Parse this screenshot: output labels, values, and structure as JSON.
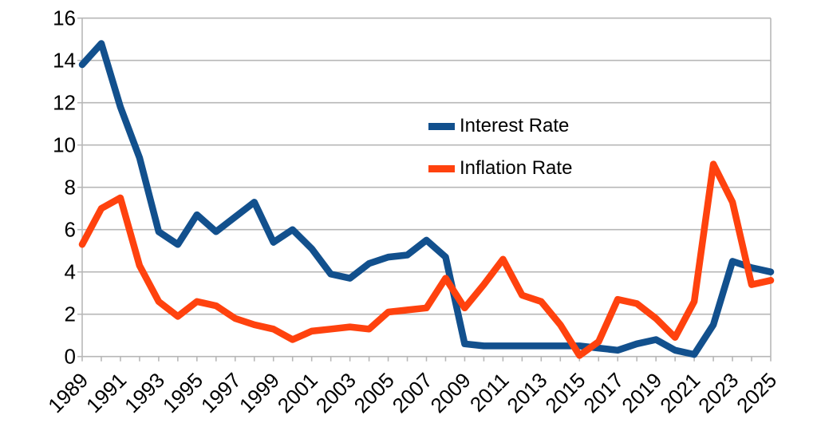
{
  "chart_data": {
    "type": "line",
    "title": "",
    "xlabel": "",
    "ylabel": "",
    "x_range": [
      1989,
      2025
    ],
    "y_range": [
      0,
      16
    ],
    "grid": "horizontal",
    "legend_position": "inside-upper-middle",
    "y_ticks": [
      0,
      2,
      4,
      6,
      8,
      10,
      12,
      14,
      16
    ],
    "x_tick_label_years": [
      1989,
      1991,
      1993,
      1995,
      1997,
      1999,
      2001,
      2003,
      2005,
      2007,
      2009,
      2011,
      2013,
      2015,
      2017,
      2019,
      2021,
      2023,
      2025
    ],
    "x": [
      1989,
      1990,
      1991,
      1992,
      1993,
      1994,
      1995,
      1996,
      1997,
      1998,
      1999,
      2000,
      2001,
      2002,
      2003,
      2004,
      2005,
      2006,
      2007,
      2008,
      2009,
      2010,
      2011,
      2012,
      2013,
      2014,
      2015,
      2016,
      2017,
      2018,
      2019,
      2020,
      2021,
      2022,
      2023,
      2024,
      2025
    ],
    "series": [
      {
        "name": "Interest Rate",
        "color": "#12508d",
        "values": [
          13.8,
          14.8,
          11.8,
          9.4,
          5.9,
          5.3,
          6.7,
          5.9,
          6.6,
          7.3,
          5.4,
          6.0,
          5.1,
          3.9,
          3.7,
          4.4,
          4.7,
          4.8,
          5.5,
          4.7,
          0.6,
          0.5,
          0.5,
          0.5,
          0.5,
          0.5,
          0.5,
          0.4,
          0.3,
          0.6,
          0.8,
          0.3,
          0.1,
          1.5,
          4.5,
          4.2,
          4.0
        ]
      },
      {
        "name": "Inflation Rate",
        "color": "#ff420e",
        "values": [
          5.3,
          7.0,
          7.5,
          4.3,
          2.6,
          1.9,
          2.6,
          2.4,
          1.8,
          1.5,
          1.3,
          0.8,
          1.2,
          1.3,
          1.4,
          1.3,
          2.1,
          2.2,
          2.3,
          3.7,
          2.3,
          3.4,
          4.6,
          2.9,
          2.6,
          1.5,
          0.05,
          0.7,
          2.7,
          2.5,
          1.8,
          0.9,
          2.6,
          9.1,
          7.3,
          3.4,
          3.6
        ]
      }
    ],
    "colors": {
      "background": "#ffffff",
      "grid": "#b7b7b7",
      "axis": "#b7b7b7",
      "text": "#000000"
    }
  }
}
